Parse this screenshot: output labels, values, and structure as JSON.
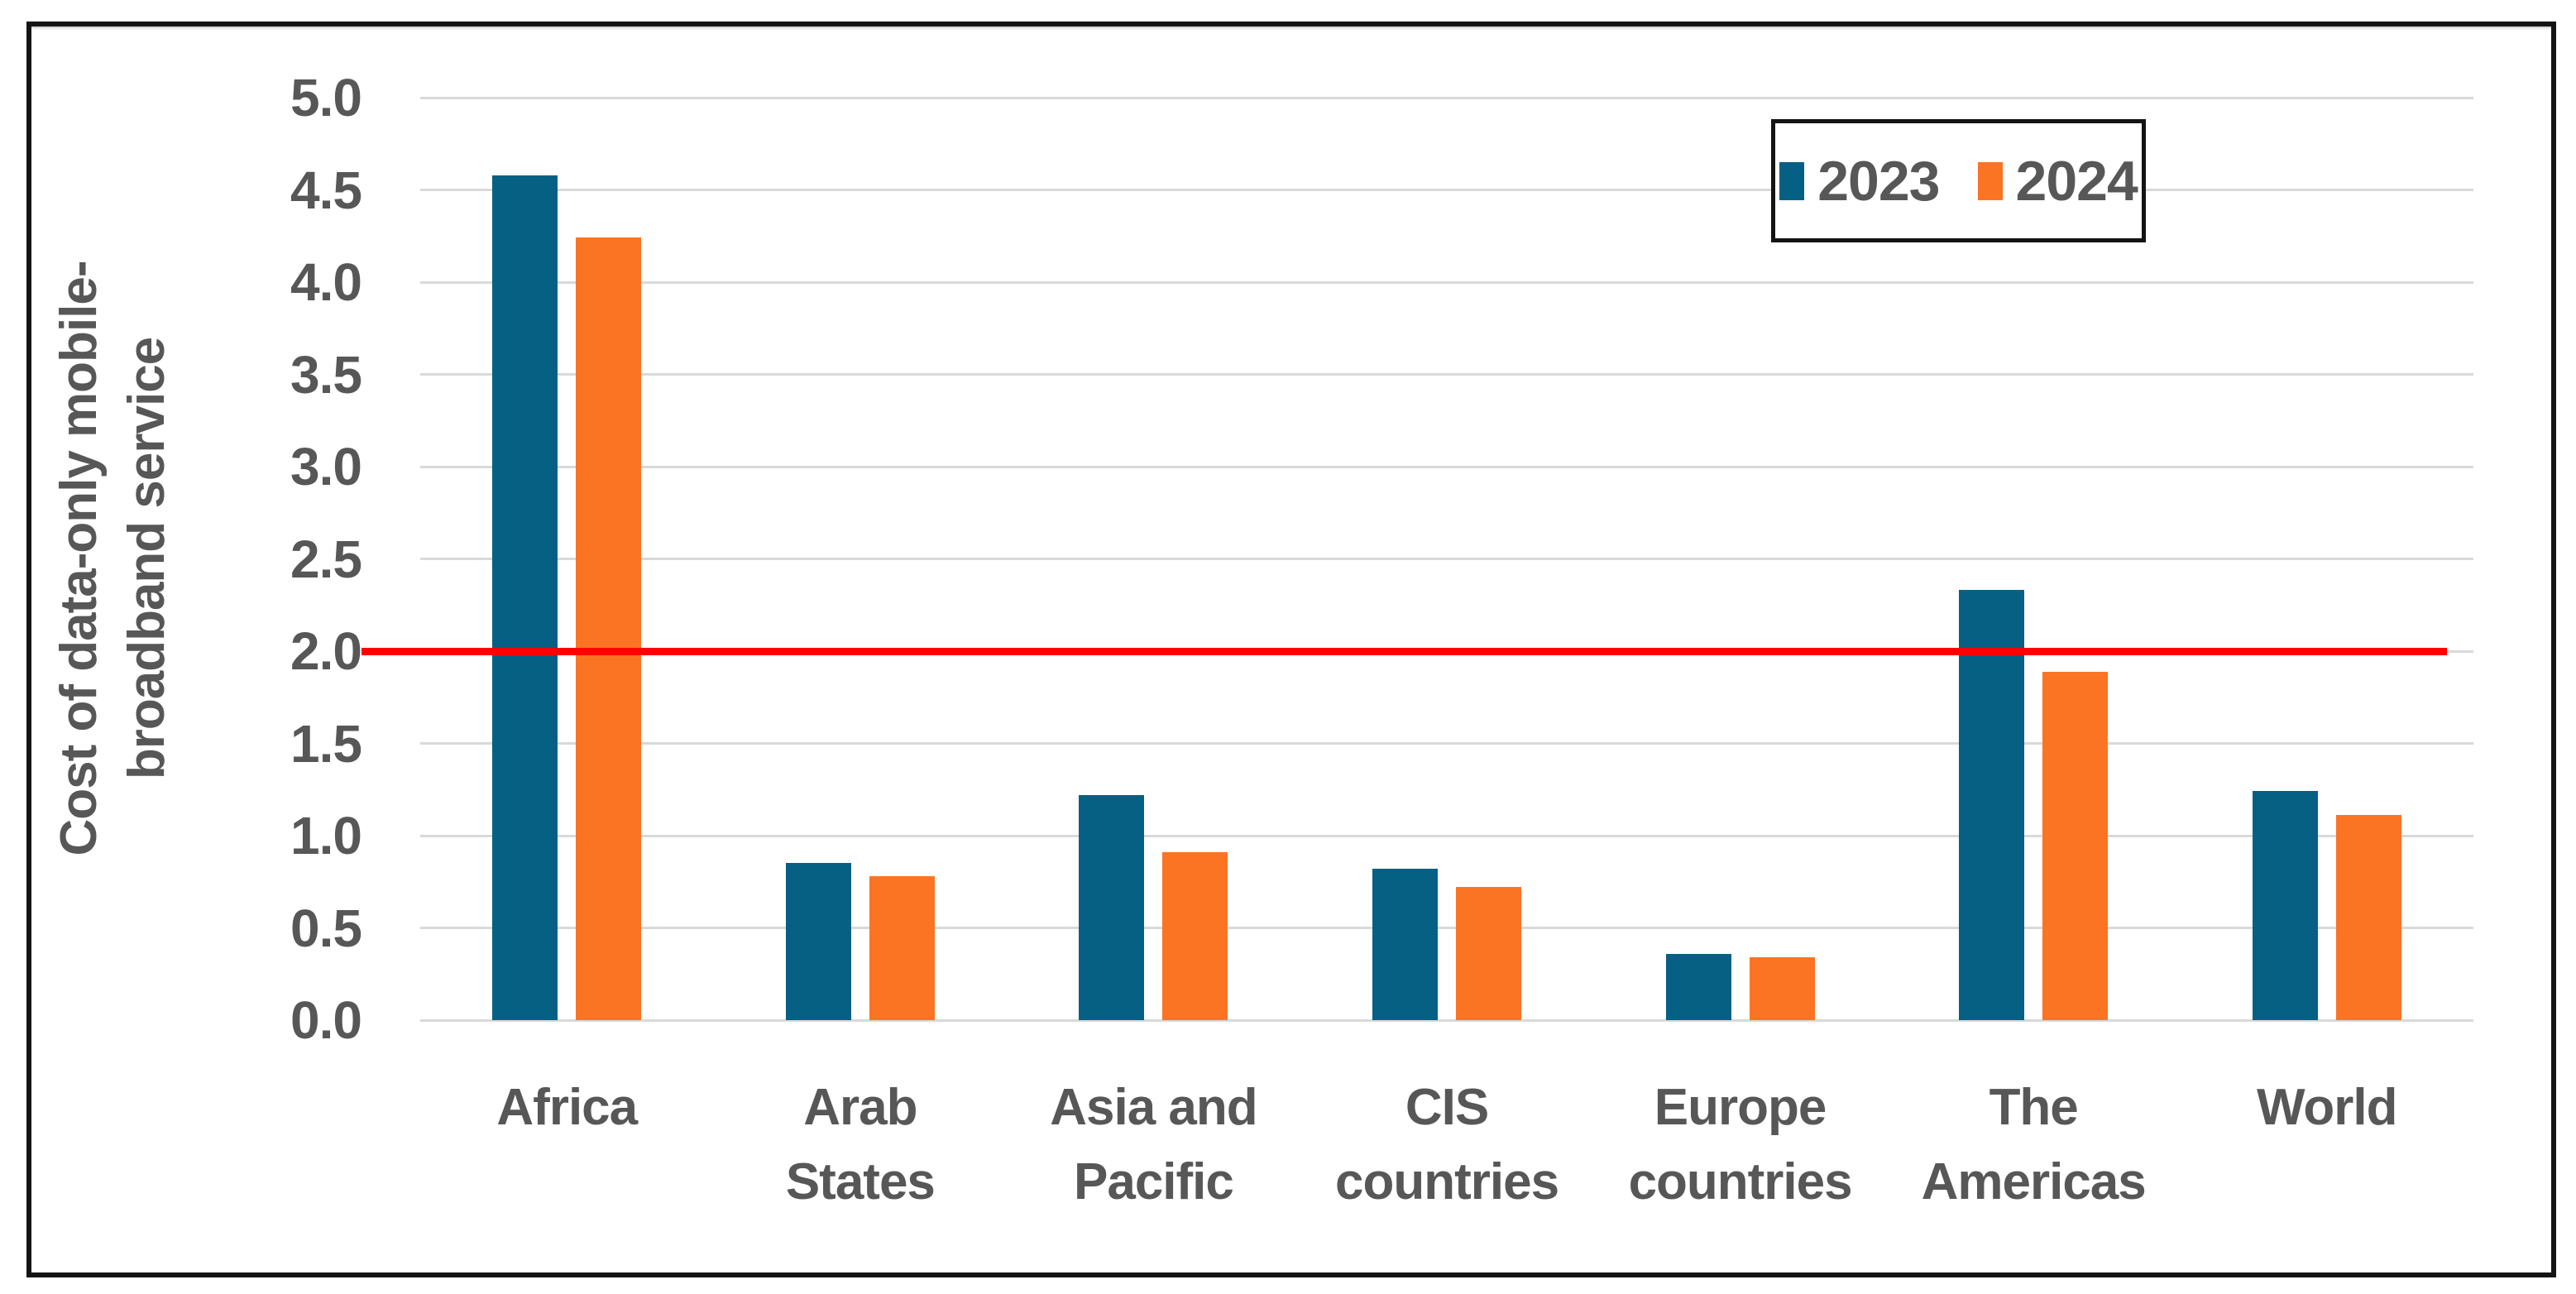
{
  "chart_data": {
    "type": "bar",
    "title": "",
    "ylabel": "Cost of data-only mobile-\nbroadband service",
    "xlabel": "",
    "ylim": [
      0,
      5
    ],
    "ytick_step": 0.5,
    "yticks": [
      "0.0",
      "0.5",
      "1.0",
      "1.5",
      "2.0",
      "2.5",
      "3.0",
      "3.5",
      "4.0",
      "4.5",
      "5.0"
    ],
    "categories": [
      "Africa",
      "Arab\nStates",
      "Asia and\nPacific",
      "CIS\ncountries",
      "Europe\ncountries",
      "The\nAmericas",
      "World"
    ],
    "series": [
      {
        "name": "2023",
        "color": "#066083",
        "values": [
          4.58,
          0.85,
          1.22,
          0.82,
          0.36,
          2.33,
          1.24
        ]
      },
      {
        "name": "2024",
        "color": "#FB7423",
        "values": [
          4.24,
          0.78,
          0.91,
          0.72,
          0.34,
          1.89,
          1.11
        ]
      }
    ],
    "reference_line": {
      "value": 2.0,
      "color": "#FF0000"
    },
    "grid": "horizontal",
    "gridline_color": "#D9D9D9",
    "legend_position": "top-right",
    "axis_text_color": "#575757",
    "frame_border_color": "#141414"
  }
}
